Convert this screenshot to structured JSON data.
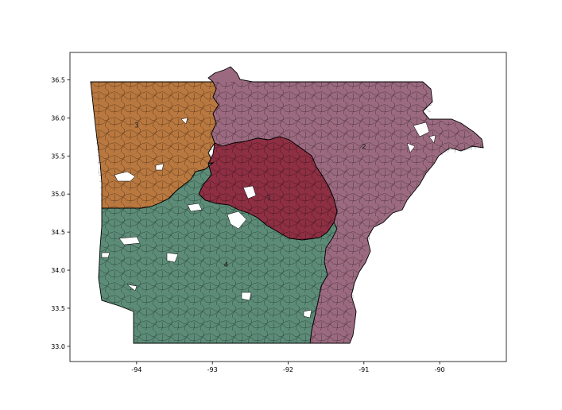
{
  "chart_data": {
    "type": "map",
    "xlim": [
      -94.88,
      -89.12
    ],
    "ylim": [
      32.8,
      36.86
    ],
    "xticks": [
      "-94",
      "-93",
      "-92",
      "-91",
      "-90"
    ],
    "yticks": [
      "33.0",
      "33.5",
      "34.0",
      "34.5",
      "35.0",
      "35.5",
      "36.0",
      "36.5"
    ],
    "xtick_values": [
      -94,
      -93,
      -92,
      -91,
      -90
    ],
    "ytick_values": [
      33.0,
      33.5,
      34.0,
      34.5,
      35.0,
      35.5,
      36.0,
      36.5
    ],
    "regions": [
      {
        "label": "1",
        "color": "#8e2f43",
        "label_lon": -92.25,
        "label_lat": 34.95
      },
      {
        "label": "2",
        "color": "#9b6a80",
        "label_lon": -91.0,
        "label_lat": 35.62
      },
      {
        "label": "3",
        "color": "#b9783f",
        "label_lon": -94.0,
        "label_lat": 35.9
      },
      {
        "label": "4",
        "color": "#5c8c77",
        "label_lon": -92.82,
        "label_lat": 34.07
      }
    ]
  }
}
